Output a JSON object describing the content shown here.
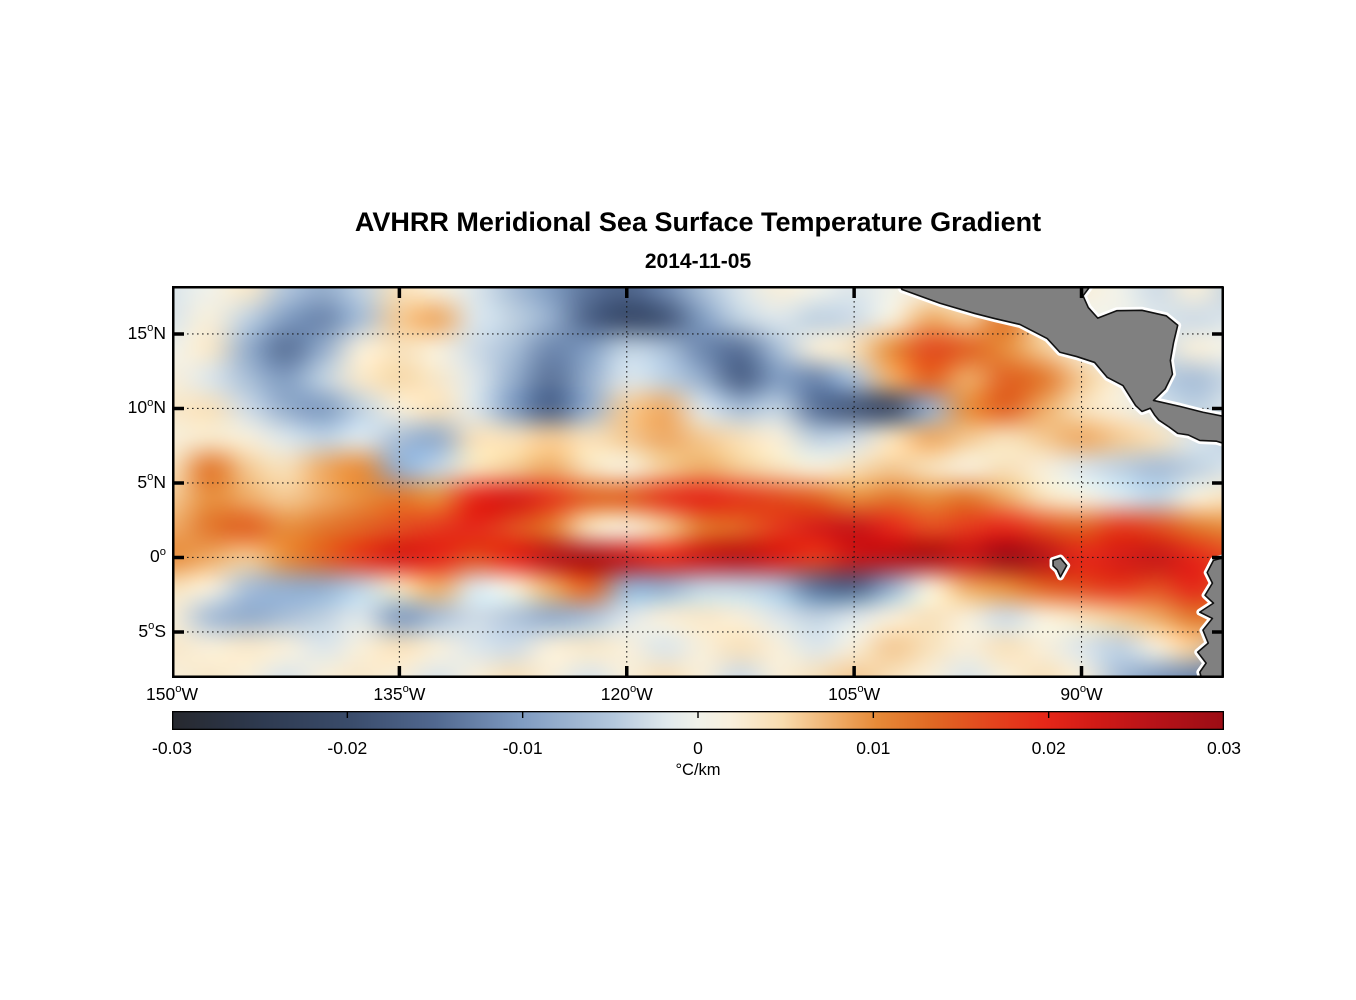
{
  "title": "AVHRR Meridional Sea Surface Temperature Gradient",
  "subtitle": "2014-11-05",
  "chart_data": {
    "type": "heatmap",
    "title": "AVHRR Meridional Sea Surface Temperature Gradient",
    "date": "2014-11-05",
    "lon_range": [
      -150,
      -80.6
    ],
    "lat_range": [
      -8.09,
      18.22
    ],
    "lon_ticks": {
      "values": [
        -150,
        -135,
        -120,
        -105,
        -90
      ],
      "labels": [
        "150°W",
        "135°W",
        "120°W",
        "105°W",
        "90°W"
      ]
    },
    "lat_ticks": {
      "values": [
        15,
        10,
        5,
        0,
        -5
      ],
      "labels": [
        "15°N",
        "10°N",
        "5°N",
        "0°",
        "5°S"
      ]
    },
    "grid_dotted": true,
    "grid": {
      "comment": "meridional SST gradient field, units = scale * value (°C/km), rows north to south",
      "lon_start": -150,
      "lon_step": 2.5,
      "lat_start": 18,
      "lat_step": -2,
      "scale": 0.001,
      "values": [
        [
          -2,
          0,
          3,
          -5,
          -8,
          -4,
          4,
          2,
          -2,
          -6,
          -10,
          -14,
          -16,
          -12,
          -6,
          -2,
          2,
          0,
          -2,
          0,
          2,
          0,
          2,
          0,
          2,
          0,
          -3,
          2,
          -4
        ],
        [
          -2,
          2,
          -4,
          -10,
          -12,
          -6,
          6,
          8,
          -2,
          -4,
          -8,
          -16,
          -20,
          -18,
          -10,
          -4,
          -2,
          -4,
          -3,
          2,
          8,
          6,
          12,
          4,
          0,
          0,
          -2,
          -3,
          -2
        ],
        [
          0,
          3,
          -8,
          -14,
          -8,
          2,
          4,
          2,
          -3,
          -6,
          -12,
          -10,
          -4,
          -6,
          -12,
          -14,
          -6,
          2,
          4,
          10,
          16,
          14,
          10,
          6,
          2,
          -2,
          -3,
          2,
          0
        ],
        [
          2,
          -2,
          -6,
          -10,
          -4,
          3,
          5,
          3,
          -2,
          -8,
          -14,
          -8,
          -2,
          -4,
          -8,
          -16,
          -10,
          -12,
          -6,
          8,
          14,
          8,
          14,
          12,
          6,
          2,
          -4,
          -6,
          -3
        ],
        [
          3,
          4,
          -3,
          -8,
          -10,
          -4,
          2,
          4,
          -2,
          -10,
          -16,
          -8,
          6,
          8,
          -2,
          -6,
          -4,
          -14,
          -18,
          -20,
          -8,
          10,
          14,
          8,
          4,
          2,
          -2,
          -4,
          -2
        ],
        [
          2,
          3,
          2,
          -2,
          -4,
          -2,
          -6,
          -8,
          4,
          4,
          6,
          4,
          6,
          8,
          6,
          4,
          2,
          -4,
          -3,
          4,
          8,
          6,
          4,
          6,
          8,
          6,
          4,
          -2,
          -4
        ],
        [
          4,
          12,
          6,
          4,
          8,
          10,
          -8,
          -4,
          4,
          6,
          8,
          4,
          2,
          6,
          8,
          6,
          4,
          2,
          4,
          6,
          4,
          2,
          4,
          2,
          -2,
          -4,
          -6,
          -4,
          -2
        ],
        [
          6,
          10,
          8,
          6,
          8,
          10,
          12,
          10,
          20,
          22,
          18,
          14,
          14,
          18,
          20,
          18,
          16,
          14,
          10,
          12,
          10,
          12,
          8,
          4,
          2,
          -2,
          -4,
          2,
          4
        ],
        [
          8,
          12,
          14,
          10,
          12,
          14,
          16,
          18,
          20,
          16,
          12,
          4,
          2,
          6,
          12,
          14,
          18,
          22,
          24,
          20,
          16,
          18,
          20,
          16,
          14,
          18,
          16,
          12,
          10
        ],
        [
          10,
          8,
          6,
          10,
          14,
          18,
          22,
          20,
          16,
          20,
          26,
          28,
          24,
          20,
          24,
          26,
          22,
          18,
          24,
          26,
          28,
          24,
          30,
          26,
          20,
          22,
          24,
          20,
          16
        ],
        [
          4,
          2,
          -6,
          -8,
          -8,
          -4,
          4,
          8,
          -2,
          2,
          8,
          14,
          -8,
          -8,
          -4,
          -4,
          -6,
          -14,
          -16,
          -8,
          2,
          8,
          10,
          14,
          16,
          18,
          16,
          20,
          14
        ],
        [
          2,
          -6,
          -8,
          -6,
          -4,
          -2,
          -10,
          -6,
          -3,
          -5,
          -8,
          -6,
          -2,
          2,
          3,
          2,
          -2,
          -4,
          -2,
          2,
          4,
          2,
          -3,
          2,
          4,
          6,
          8,
          12,
          10
        ],
        [
          3,
          2,
          3,
          2,
          -2,
          2,
          4,
          2,
          -2,
          -3,
          2,
          3,
          2,
          -2,
          2,
          4,
          2,
          -2,
          2,
          6,
          4,
          2,
          4,
          2,
          -2,
          -4,
          2,
          6,
          -8
        ],
        [
          2,
          3,
          2,
          -2,
          2,
          3,
          2,
          -2,
          2,
          4,
          2,
          -2,
          2,
          4,
          2,
          -3,
          2,
          4,
          6,
          4,
          2,
          -2,
          2,
          4,
          2,
          -6,
          -10,
          -12,
          -14
        ]
      ]
    },
    "colorbar": {
      "min": -0.03,
      "max": 0.03,
      "tick_labels": [
        "-0.03",
        "-0.02",
        "-0.01",
        "0",
        "0.01",
        "0.02",
        "0.03"
      ],
      "label": "°C/km",
      "stops": [
        [
          0.0,
          "#26282e"
        ],
        [
          0.085,
          "#2e3a50"
        ],
        [
          0.17,
          "#3a4c6b"
        ],
        [
          0.25,
          "#51688f"
        ],
        [
          0.33,
          "#7e9ac0"
        ],
        [
          0.42,
          "#b4c8dd"
        ],
        [
          0.47,
          "#dfe8ec"
        ],
        [
          0.5,
          "#f1f2ea"
        ],
        [
          0.53,
          "#f8f0dd"
        ],
        [
          0.58,
          "#f8dcae"
        ],
        [
          0.64,
          "#eda45c"
        ],
        [
          0.67,
          "#e68a38"
        ],
        [
          0.72,
          "#e06a24"
        ],
        [
          0.78,
          "#e3441d"
        ],
        [
          0.83,
          "#e52718"
        ],
        [
          0.88,
          "#d01a16"
        ],
        [
          0.93,
          "#b91318"
        ],
        [
          1.0,
          "#9c0d15"
        ]
      ]
    },
    "land": {
      "fill": "#808080",
      "outline": "#111111",
      "halo": "#ffffff",
      "polygons": [
        {
          "name": "central-america",
          "points": [
            [
              0.692,
              0
            ],
            [
              0.873,
              0
            ],
            [
              0.866,
              0.025
            ],
            [
              0.871,
              0.055
            ],
            [
              0.88,
              0.082
            ],
            [
              0.898,
              0.063
            ],
            [
              0.922,
              0.062
            ],
            [
              0.945,
              0.076
            ],
            [
              0.956,
              0.1
            ],
            [
              0.952,
              0.145
            ],
            [
              0.949,
              0.19
            ],
            [
              0.951,
              0.225
            ],
            [
              0.944,
              0.263
            ],
            [
              0.933,
              0.292
            ],
            [
              0.958,
              0.307
            ],
            [
              0.98,
              0.322
            ],
            [
              1.004,
              0.335
            ],
            [
              1.004,
              0.405
            ],
            [
              0.993,
              0.396
            ],
            [
              0.977,
              0.394
            ],
            [
              0.966,
              0.38
            ],
            [
              0.956,
              0.376
            ],
            [
              0.948,
              0.36
            ],
            [
              0.938,
              0.342
            ],
            [
              0.934,
              0.329
            ],
            [
              0.93,
              0.312
            ],
            [
              0.922,
              0.32
            ],
            [
              0.916,
              0.305
            ],
            [
              0.904,
              0.254
            ],
            [
              0.889,
              0.233
            ],
            [
              0.877,
              0.195
            ],
            [
              0.86,
              0.18
            ],
            [
              0.844,
              0.169
            ],
            [
              0.832,
              0.134
            ],
            [
              0.806,
              0.098
            ],
            [
              0.782,
              0.083
            ],
            [
              0.763,
              0.07
            ],
            [
              0.73,
              0.044
            ],
            [
              0.694,
              0.009
            ]
          ]
        },
        {
          "name": "south-america",
          "points": [
            [
              1.004,
              0.69
            ],
            [
              0.99,
              0.7
            ],
            [
              0.984,
              0.731
            ],
            [
              0.989,
              0.758
            ],
            [
              0.982,
              0.789
            ],
            [
              0.99,
              0.809
            ],
            [
              0.977,
              0.832
            ],
            [
              0.989,
              0.848
            ],
            [
              0.98,
              0.878
            ],
            [
              0.985,
              0.911
            ],
            [
              0.975,
              0.934
            ],
            [
              0.983,
              0.962
            ],
            [
              0.977,
              0.985
            ],
            [
              0.979,
              1.004
            ],
            [
              1.004,
              1.004
            ]
          ]
        },
        {
          "name": "galapagos-islands",
          "points": [
            [
              0.8375,
              0.7
            ],
            [
              0.8445,
              0.694
            ],
            [
              0.8505,
              0.713
            ],
            [
              0.8445,
              0.742
            ],
            [
              0.8415,
              0.724
            ],
            [
              0.8375,
              0.714
            ]
          ]
        }
      ]
    }
  }
}
